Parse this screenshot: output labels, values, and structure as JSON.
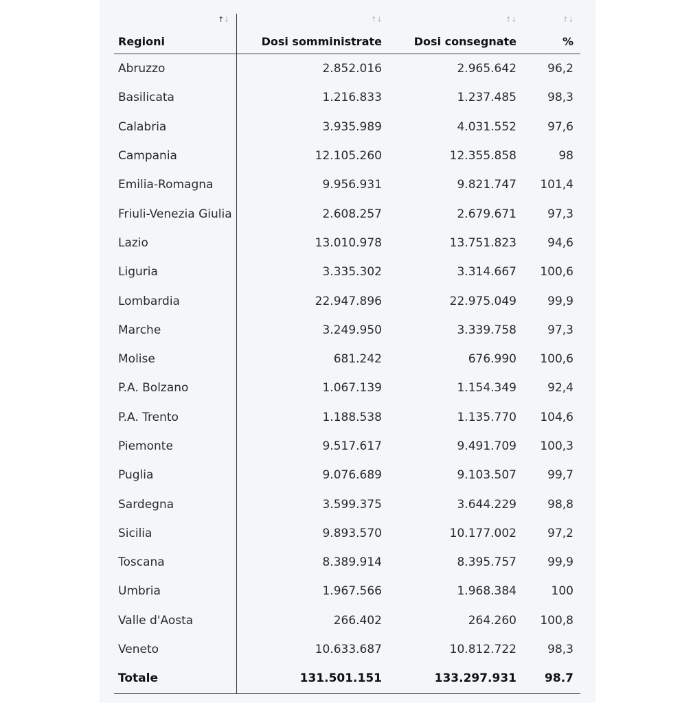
{
  "table": {
    "headers": {
      "region": "Regioni",
      "administered": "Dosi somministrate",
      "delivered": "Dosi consegnate",
      "percent": "%"
    },
    "sort_icon": "↑↓",
    "rows": [
      {
        "region": "Abruzzo",
        "administered": "2.852.016",
        "delivered": "2.965.642",
        "percent": "96,2"
      },
      {
        "region": "Basilicata",
        "administered": "1.216.833",
        "delivered": "1.237.485",
        "percent": "98,3"
      },
      {
        "region": "Calabria",
        "administered": "3.935.989",
        "delivered": "4.031.552",
        "percent": "97,6"
      },
      {
        "region": "Campania",
        "administered": "12.105.260",
        "delivered": "12.355.858",
        "percent": "98"
      },
      {
        "region": "Emilia-Romagna",
        "administered": "9.956.931",
        "delivered": "9.821.747",
        "percent": "101,4"
      },
      {
        "region": "Friuli-Venezia Giulia",
        "administered": "2.608.257",
        "delivered": "2.679.671",
        "percent": "97,3"
      },
      {
        "region": "Lazio",
        "administered": "13.010.978",
        "delivered": "13.751.823",
        "percent": "94,6"
      },
      {
        "region": "Liguria",
        "administered": "3.335.302",
        "delivered": "3.314.667",
        "percent": "100,6"
      },
      {
        "region": "Lombardia",
        "administered": "22.947.896",
        "delivered": "22.975.049",
        "percent": "99,9"
      },
      {
        "region": "Marche",
        "administered": "3.249.950",
        "delivered": "3.339.758",
        "percent": "97,3"
      },
      {
        "region": "Molise",
        "administered": "681.242",
        "delivered": "676.990",
        "percent": "100,6"
      },
      {
        "region": "P.A. Bolzano",
        "administered": "1.067.139",
        "delivered": "1.154.349",
        "percent": "92,4"
      },
      {
        "region": "P.A. Trento",
        "administered": "1.188.538",
        "delivered": "1.135.770",
        "percent": "104,6"
      },
      {
        "region": "Piemonte",
        "administered": "9.517.617",
        "delivered": "9.491.709",
        "percent": "100,3"
      },
      {
        "region": "Puglia",
        "administered": "9.076.689",
        "delivered": "9.103.507",
        "percent": "99,7"
      },
      {
        "region": "Sardegna",
        "administered": "3.599.375",
        "delivered": "3.644.229",
        "percent": "98,8"
      },
      {
        "region": "Sicilia",
        "administered": "9.893.570",
        "delivered": "10.177.002",
        "percent": "97,2"
      },
      {
        "region": "Toscana",
        "administered": "8.389.914",
        "delivered": "8.395.757",
        "percent": "99,9"
      },
      {
        "region": "Umbria",
        "administered": "1.967.566",
        "delivered": "1.968.384",
        "percent": "100"
      },
      {
        "region": "Valle d'Aosta",
        "administered": "266.402",
        "delivered": "264.260",
        "percent": "100,8"
      },
      {
        "region": "Veneto",
        "administered": "10.633.687",
        "delivered": "10.812.722",
        "percent": "98,3"
      }
    ],
    "total": {
      "region": "Totale",
      "administered": "131.501.151",
      "delivered": "133.297.931",
      "percent": "98.7"
    }
  }
}
